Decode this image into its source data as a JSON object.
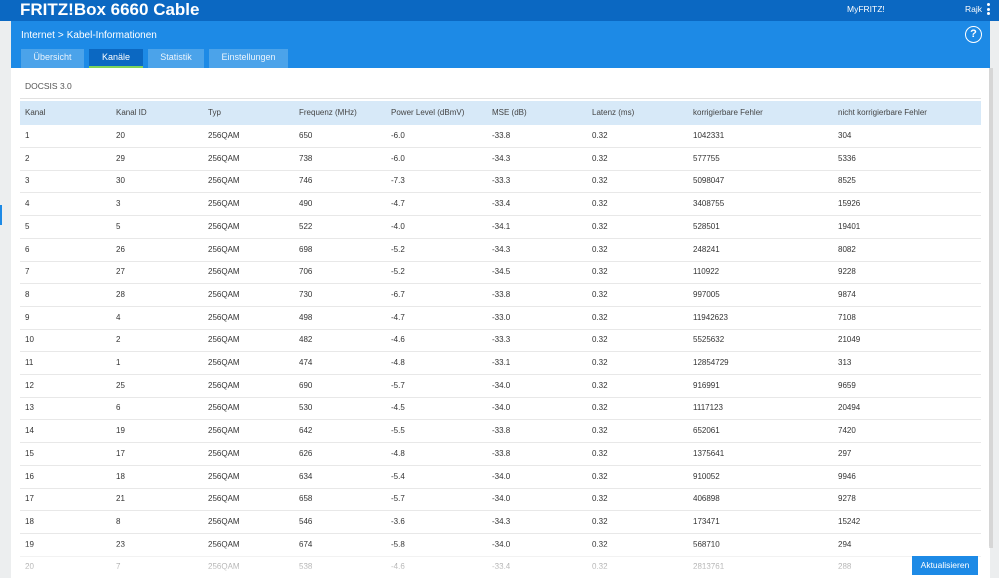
{
  "topbar": {
    "brand": "FRITZ!Box 6660 Cable",
    "myfritz": "MyFRITZ!",
    "user": "Rajk"
  },
  "breadcrumb": {
    "section": "Internet",
    "separator": ">",
    "page": "Kabel-Informationen"
  },
  "help_label": "?",
  "tabs": [
    "Übersicht",
    "Kanäle",
    "Statistik",
    "Einstellungen"
  ],
  "active_tab": "Kanäle",
  "section_title": "DOCSIS 3.0",
  "table": {
    "headers": [
      "Kanal",
      "Kanal ID",
      "Typ",
      "Frequenz (MHz)",
      "Power Level (dBmV)",
      "MSE (dB)",
      "Latenz (ms)",
      "korrigierbare Fehler",
      "nicht korrigierbare Fehler"
    ],
    "rows": [
      [
        "1",
        "20",
        "256QAM",
        "650",
        "-6.0",
        "-33.8",
        "0.32",
        "1042331",
        "304"
      ],
      [
        "2",
        "29",
        "256QAM",
        "738",
        "-6.0",
        "-34.3",
        "0.32",
        "577755",
        "5336"
      ],
      [
        "3",
        "30",
        "256QAM",
        "746",
        "-7.3",
        "-33.3",
        "0.32",
        "5098047",
        "8525"
      ],
      [
        "4",
        "3",
        "256QAM",
        "490",
        "-4.7",
        "-33.4",
        "0.32",
        "3408755",
        "15926"
      ],
      [
        "5",
        "5",
        "256QAM",
        "522",
        "-4.0",
        "-34.1",
        "0.32",
        "528501",
        "19401"
      ],
      [
        "6",
        "26",
        "256QAM",
        "698",
        "-5.2",
        "-34.3",
        "0.32",
        "248241",
        "8082"
      ],
      [
        "7",
        "27",
        "256QAM",
        "706",
        "-5.2",
        "-34.5",
        "0.32",
        "110922",
        "9228"
      ],
      [
        "8",
        "28",
        "256QAM",
        "730",
        "-6.7",
        "-33.8",
        "0.32",
        "997005",
        "9874"
      ],
      [
        "9",
        "4",
        "256QAM",
        "498",
        "-4.7",
        "-33.0",
        "0.32",
        "11942623",
        "7108"
      ],
      [
        "10",
        "2",
        "256QAM",
        "482",
        "-4.6",
        "-33.3",
        "0.32",
        "5525632",
        "21049"
      ],
      [
        "11",
        "1",
        "256QAM",
        "474",
        "-4.8",
        "-33.1",
        "0.32",
        "12854729",
        "313"
      ],
      [
        "12",
        "25",
        "256QAM",
        "690",
        "-5.7",
        "-34.0",
        "0.32",
        "916991",
        "9659"
      ],
      [
        "13",
        "6",
        "256QAM",
        "530",
        "-4.5",
        "-34.0",
        "0.32",
        "1117123",
        "20494"
      ],
      [
        "14",
        "19",
        "256QAM",
        "642",
        "-5.5",
        "-33.8",
        "0.32",
        "652061",
        "7420"
      ],
      [
        "15",
        "17",
        "256QAM",
        "626",
        "-4.8",
        "-33.8",
        "0.32",
        "1375641",
        "297"
      ],
      [
        "16",
        "18",
        "256QAM",
        "634",
        "-5.4",
        "-34.0",
        "0.32",
        "910052",
        "9946"
      ],
      [
        "17",
        "21",
        "256QAM",
        "658",
        "-5.7",
        "-34.0",
        "0.32",
        "406898",
        "9278"
      ],
      [
        "18",
        "8",
        "256QAM",
        "546",
        "-3.6",
        "-34.3",
        "0.32",
        "173471",
        "15242"
      ],
      [
        "19",
        "23",
        "256QAM",
        "674",
        "-5.8",
        "-34.0",
        "0.32",
        "568710",
        "294"
      ],
      [
        "20",
        "7",
        "256QAM",
        "538",
        "-4.6",
        "-33.4",
        "0.32",
        "2813761",
        "288"
      ]
    ]
  },
  "refresh_button": "Aktualisieren",
  "colors": {
    "topbar": "#0b68c2",
    "header": "#1d8ae6",
    "table_header": "#d7e9f8",
    "active_tab_underline": "#7ed35a"
  }
}
